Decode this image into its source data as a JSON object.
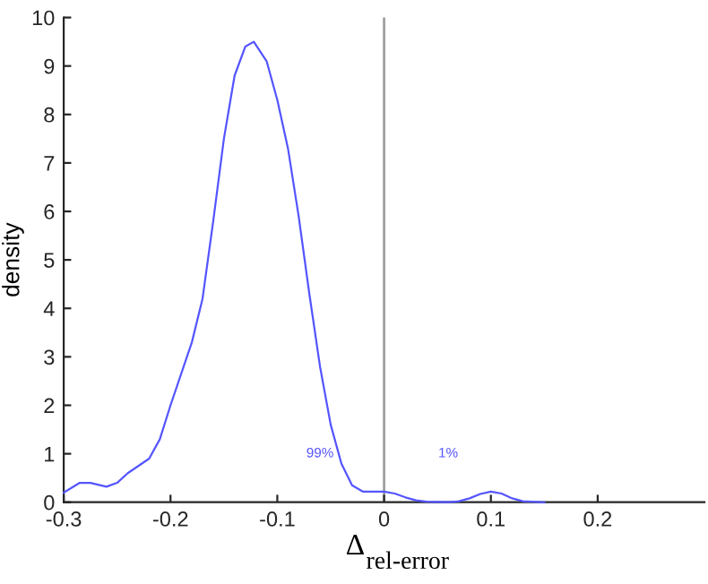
{
  "chart_data": {
    "type": "line",
    "xlabel": "Δ$_{rel-error}$",
    "ylabel": "density",
    "x": [
      -0.3,
      -0.285,
      -0.275,
      -0.26,
      -0.25,
      -0.24,
      -0.22,
      -0.21,
      -0.2,
      -0.18,
      -0.17,
      -0.16,
      -0.15,
      -0.14,
      -0.13,
      -0.122,
      -0.11,
      -0.1,
      -0.09,
      -0.08,
      -0.07,
      -0.06,
      -0.05,
      -0.04,
      -0.03,
      -0.02,
      -0.01,
      0,
      0.01,
      0.02,
      0.03,
      0.04,
      0.06,
      0.07,
      0.08,
      0.09,
      0.1,
      0.11,
      0.12,
      0.13,
      0.15
    ],
    "series": [
      {
        "color": "#5555ff",
        "values": [
          0.2,
          0.4,
          0.4,
          0.32,
          0.4,
          0.6,
          0.9,
          1.3,
          2.0,
          3.3,
          4.2,
          5.8,
          7.5,
          8.8,
          9.4,
          9.5,
          9.1,
          8.3,
          7.3,
          5.9,
          4.3,
          2.8,
          1.6,
          0.8,
          0.35,
          0.22,
          0.22,
          0.22,
          0.18,
          0.1,
          0.04,
          0.01,
          0.0,
          0.02,
          0.08,
          0.17,
          0.22,
          0.18,
          0.08,
          0.02,
          0.0
        ]
      }
    ],
    "xlim": [
      -0.3,
      0.3
    ],
    "ylim": [
      0,
      10
    ],
    "xticks": [
      -0.3,
      -0.2,
      -0.1,
      0,
      0.1,
      0.2
    ],
    "yticks": [
      0,
      1,
      2,
      3,
      4,
      5,
      6,
      7,
      8,
      9,
      10
    ],
    "ref_lines": [
      {
        "axis": "x",
        "value": 0,
        "color": "#a0a0a0"
      }
    ],
    "annotations": [
      "99%",
      "1%"
    ],
    "grid": false,
    "legend": false,
    "marker": "none",
    "line_style": "solid"
  }
}
